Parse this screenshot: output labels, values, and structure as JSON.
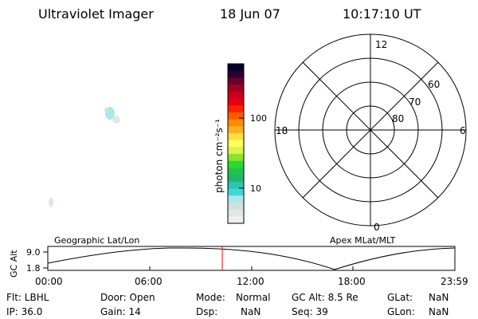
{
  "header": {
    "instrument": "Ultraviolet Imager",
    "date": "18 Jun 07",
    "time": "10:17:10 UT"
  },
  "colorbar": {
    "unit_label": "photon cm⁻²s⁻¹",
    "ticks": [
      "100",
      "10"
    ],
    "colors": [
      "#eeeeee",
      "#dfe7e7",
      "#cfe0e0",
      "#a8e8e8",
      "#3fd7d7",
      "#2fc4b0",
      "#22b46a",
      "#21c44a",
      "#30d630",
      "#8ee02f",
      "#dff24a",
      "#ffff60",
      "#ffe040",
      "#ffb020",
      "#ff8a00",
      "#ff5a00",
      "#ff2200",
      "#e60010",
      "#c80020",
      "#a10020",
      "#6a0030",
      "#2a0030",
      "#000028"
    ]
  },
  "polar": {
    "mlt_labels": {
      "top": "12",
      "left": "18",
      "right": "6",
      "bottom": "0"
    },
    "mlat_labels": [
      "60",
      "70",
      "80"
    ]
  },
  "timeline": {
    "left_label": "Geographic Lat/Lon",
    "right_label": "Apex MLat/MLT",
    "axis_title": "GC Alt",
    "y_ticks": [
      "9.0",
      "1.8"
    ],
    "x_ticks": [
      "00:00",
      "06:00",
      "12:00",
      "18:00",
      "23:59"
    ],
    "marker_color": "#ff0000",
    "marker_fraction": 0.4286
  },
  "status": {
    "flt": "Flt: LBHL",
    "ip": "IP: 36.0",
    "door": "Door: Open",
    "gain": "Gain: 14",
    "mode_label": "Mode:",
    "mode_value": "Normal",
    "dsp_label": "Dsp:",
    "dsp_value": "NaN",
    "gcalt": "GC Alt: 8.5 Re",
    "seq": "Seq: 39",
    "glat_label": "GLat:",
    "glat_value": "NaN",
    "glon_label": "GLon:",
    "glon_value": "NaN"
  }
}
